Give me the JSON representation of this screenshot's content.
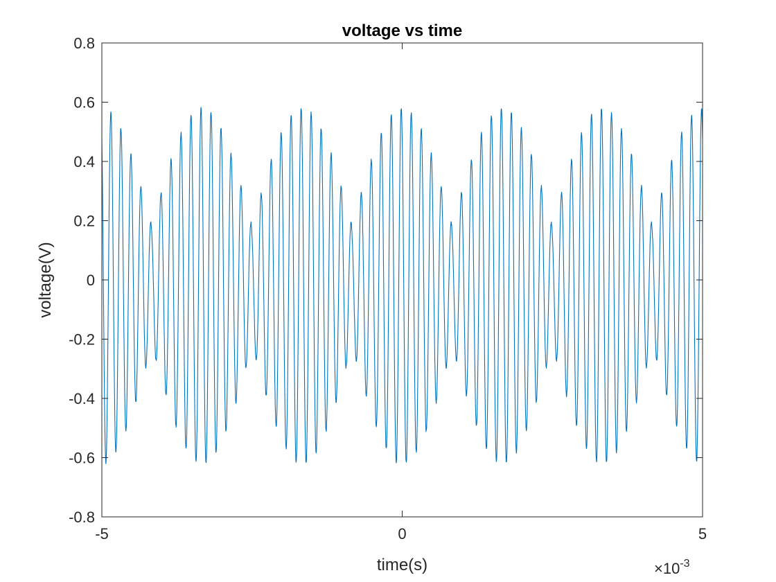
{
  "chart_data": {
    "type": "line",
    "title": "voltage vs time",
    "xlabel": "time(s)",
    "ylabel": "voltage(V)",
    "x_exponent_label": {
      "base": "×10",
      "power": "-3"
    },
    "x_scale": 0.001,
    "xlim": [
      -5,
      5
    ],
    "ylim": [
      -0.8,
      0.8
    ],
    "x_ticks": [
      -5,
      0,
      5
    ],
    "x_tick_labels": [
      "-5",
      "0",
      "5"
    ],
    "y_ticks": [
      -0.8,
      -0.6,
      -0.4,
      -0.2,
      0,
      0.2,
      0.4,
      0.6,
      0.8
    ],
    "y_tick_labels": [
      "-0.8",
      "-0.6",
      "-0.4",
      "-0.2",
      "0",
      "0.2",
      "0.4",
      "0.6",
      "0.8"
    ],
    "grid": false,
    "series": [
      {
        "color": "#0072BD",
        "signal_model": {
          "carrier_frequency_hz": 6000,
          "envelope_frequency_hz": 600,
          "carrier_amplitude_v": 0.2,
          "envelope_amplitude_v": 0.4,
          "offset_v": -0.02
        },
        "x_start": -5,
        "x_end": 5
      }
    ]
  }
}
